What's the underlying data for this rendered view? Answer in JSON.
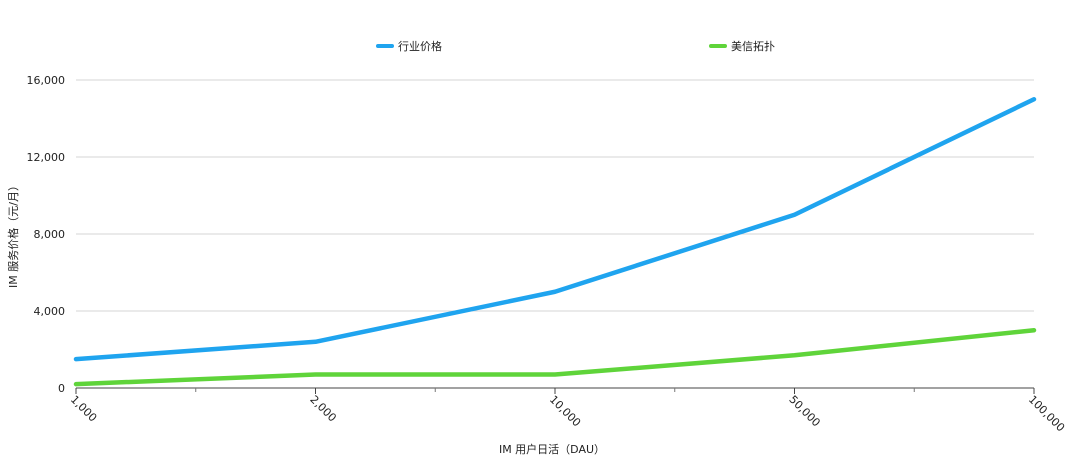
{
  "chart_data": {
    "type": "line",
    "categories": [
      "1,000",
      "2,000",
      "10,000",
      "50,000",
      "100,000"
    ],
    "series": [
      {
        "name": "行业价格",
        "color": "#1fa4ef",
        "values": [
          1500,
          2400,
          5000,
          9000,
          15000
        ]
      },
      {
        "name": "美信拓扑",
        "color": "#5fd43a",
        "values": [
          200,
          700,
          700,
          1700,
          3000
        ]
      }
    ],
    "yticks": [
      "0",
      "4,000",
      "8,000",
      "12,000",
      "16,000"
    ],
    "ytick_values": [
      0,
      4000,
      8000,
      12000,
      16000
    ],
    "ylim": [
      0,
      16000
    ],
    "xlabel": "IM 用户日活（DAU）",
    "ylabel": "IM 服务价格（元/月）",
    "grid": true,
    "legend_position": "top-center"
  }
}
